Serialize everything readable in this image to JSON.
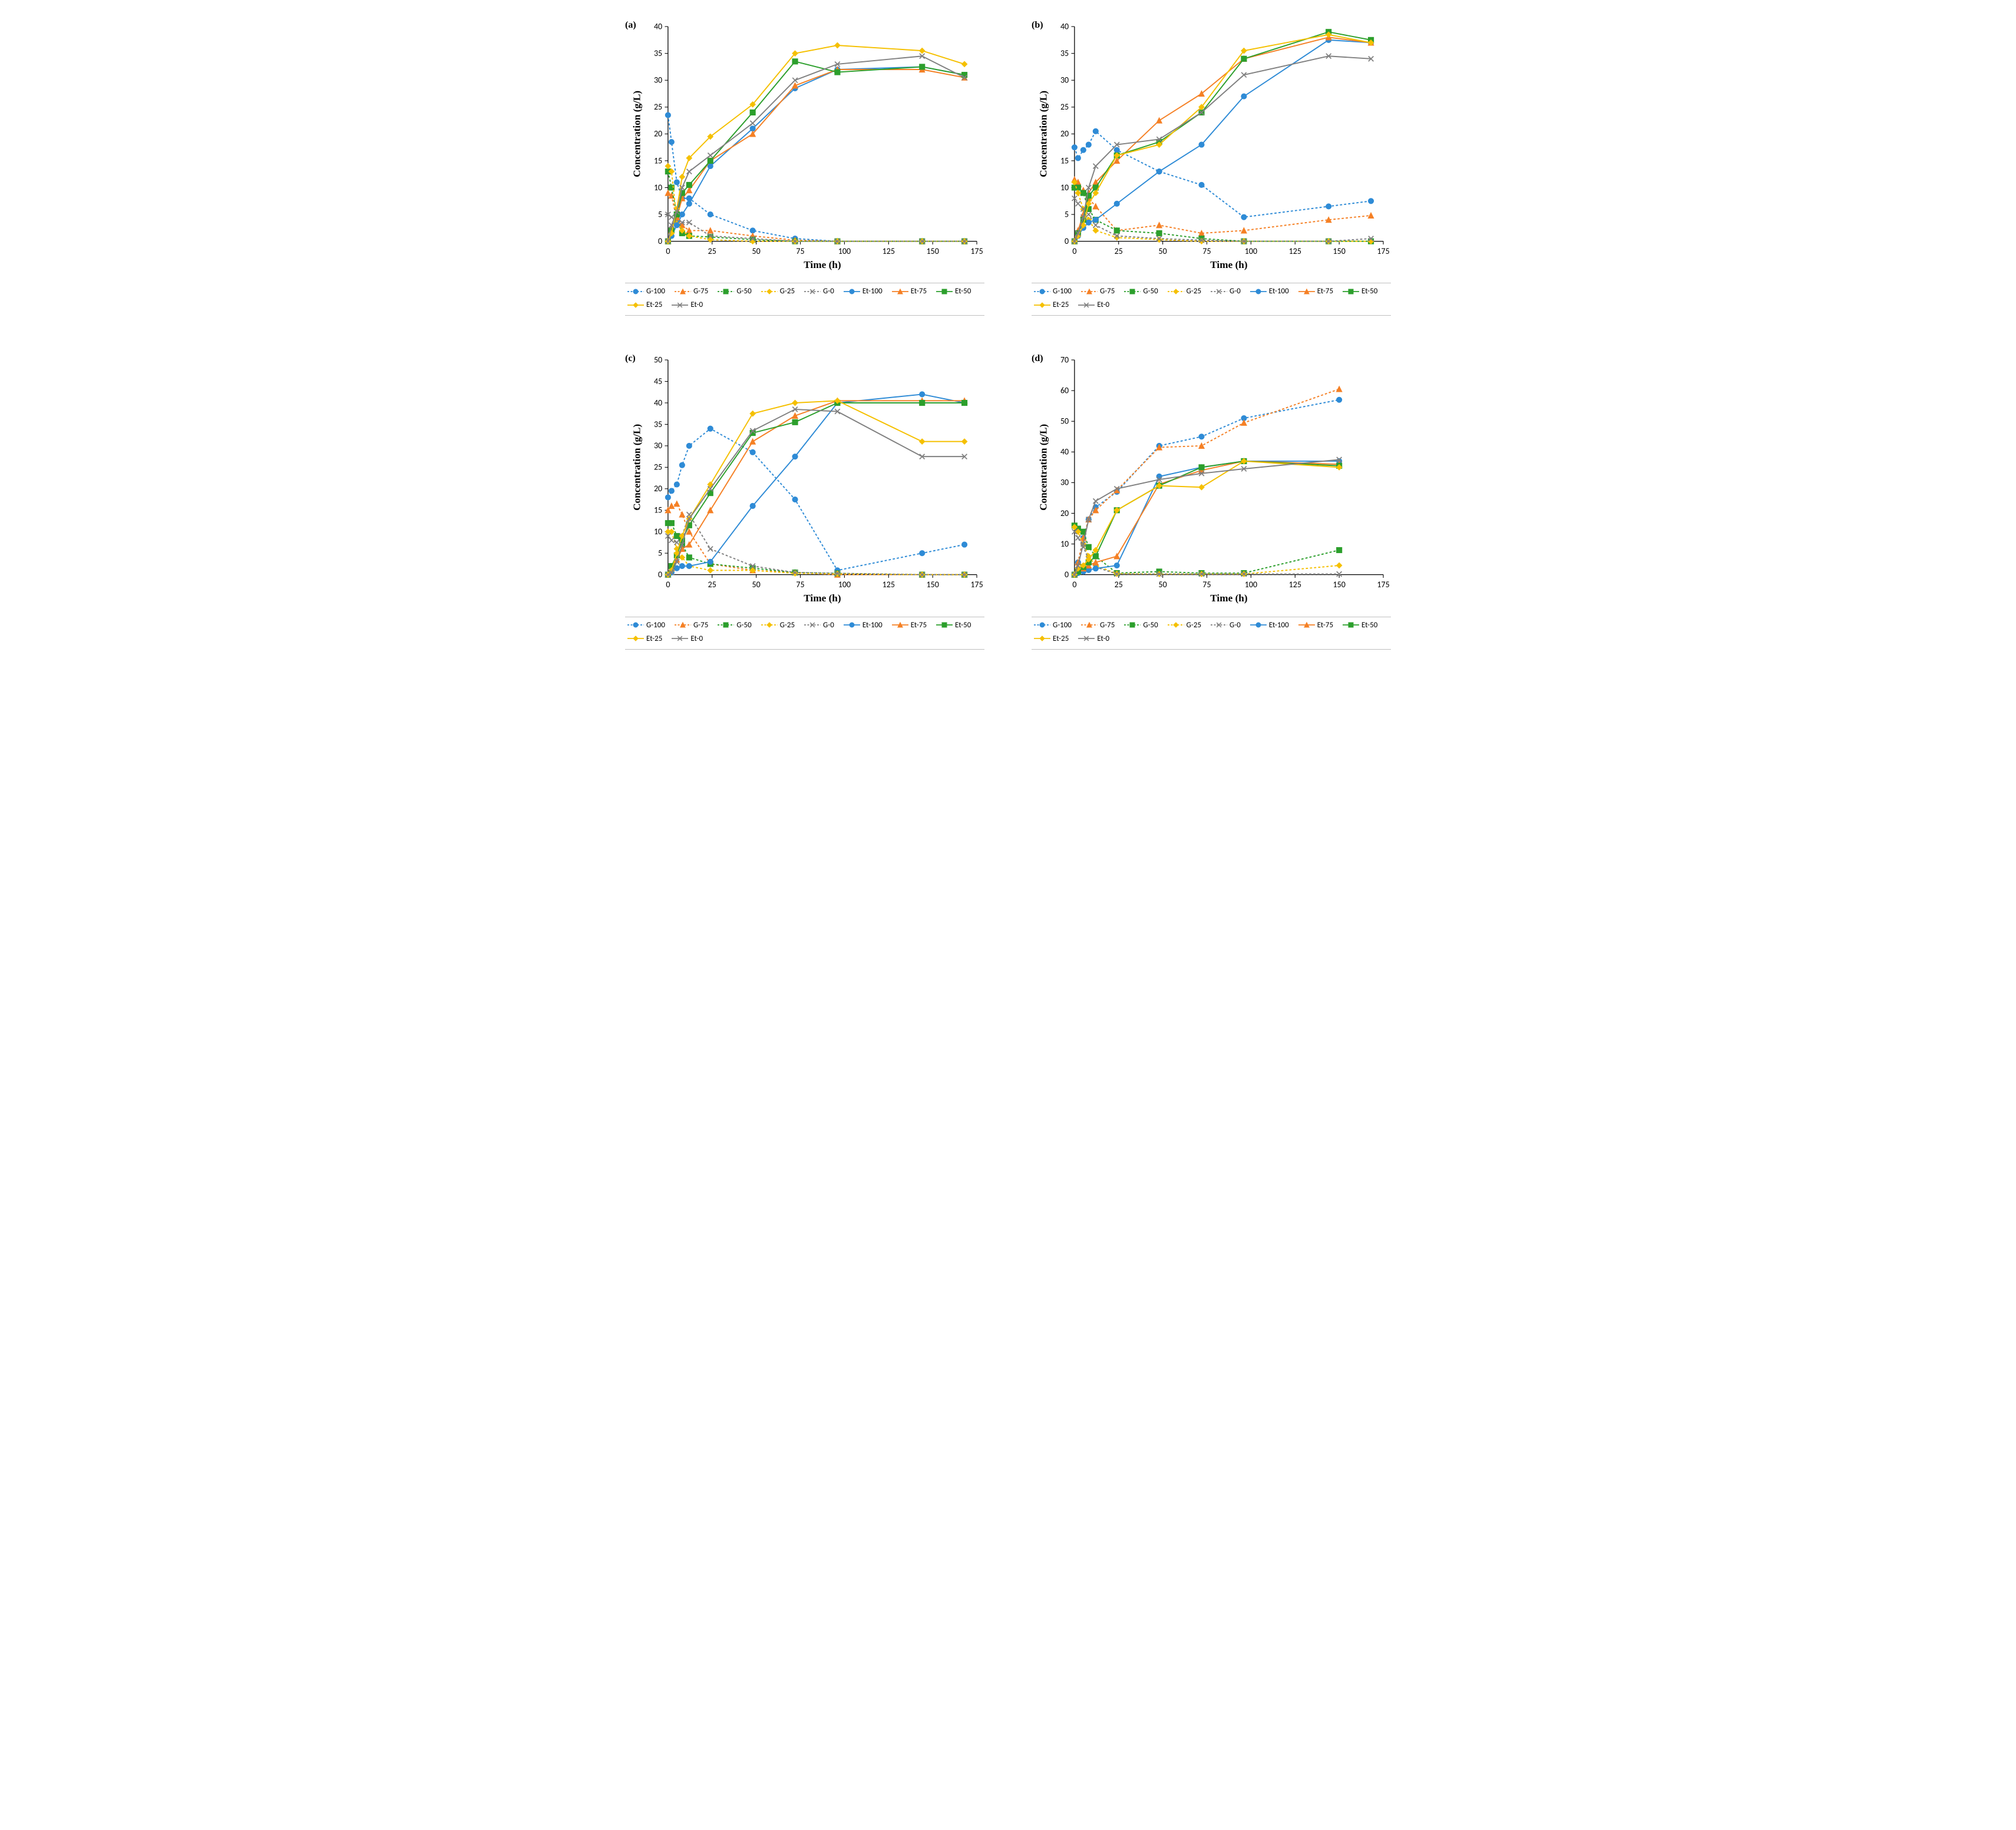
{
  "global": {
    "x_label": "Time (h)",
    "y_label": "Concentration (g/L)",
    "bg": "#ffffff",
    "axis_color": "#000000",
    "tick_fontsize": 13,
    "axis_fontsize": 16,
    "line_width": 1.8,
    "marker_size": 5
  },
  "colors": {
    "blue": "#2e8bd6",
    "orange": "#f58025",
    "green": "#2c9f2c",
    "yellow": "#f5c000",
    "gray": "#808080"
  },
  "series_styles": [
    {
      "id": "G-100",
      "label": "G-100",
      "color": "blue",
      "dashed": true,
      "marker": "circle"
    },
    {
      "id": "G-75",
      "label": "G-75",
      "color": "orange",
      "dashed": true,
      "marker": "triangle"
    },
    {
      "id": "G-50",
      "label": "G-50",
      "color": "green",
      "dashed": true,
      "marker": "square"
    },
    {
      "id": "G-25",
      "label": "G-25",
      "color": "yellow",
      "dashed": true,
      "marker": "diamond"
    },
    {
      "id": "G-0",
      "label": "G-0",
      "color": "gray",
      "dashed": true,
      "marker": "x"
    },
    {
      "id": "Et-100",
      "label": "Et-100",
      "color": "blue",
      "dashed": false,
      "marker": "circle"
    },
    {
      "id": "Et-75",
      "label": "Et-75",
      "color": "orange",
      "dashed": false,
      "marker": "triangle"
    },
    {
      "id": "Et-50",
      "label": "Et-50",
      "color": "green",
      "dashed": false,
      "marker": "square"
    },
    {
      "id": "Et-25",
      "label": "Et-25",
      "color": "yellow",
      "dashed": false,
      "marker": "diamond"
    },
    {
      "id": "Et-0",
      "label": "Et-0",
      "color": "gray",
      "dashed": false,
      "marker": "x"
    }
  ],
  "panels": {
    "a": {
      "label": "(a)",
      "xlim": [
        0,
        175
      ],
      "xtick_step": 25,
      "ylim": [
        0,
        40
      ],
      "ytick_step": 5,
      "x": [
        0,
        2,
        5,
        8,
        12,
        24,
        48,
        72,
        96,
        144,
        168
      ],
      "data": {
        "G-100": [
          23.5,
          18.5,
          11,
          8,
          8,
          5,
          2,
          0.5,
          0,
          0,
          0
        ],
        "G-75": [
          9,
          8.5,
          4,
          3,
          2,
          2,
          1,
          0.2,
          0,
          0,
          0
        ],
        "G-50": [
          13,
          10,
          5,
          1.5,
          1,
          0.8,
          0.3,
          0,
          0,
          0,
          0
        ],
        "G-25": [
          14,
          13,
          4,
          2,
          1,
          0.3,
          0,
          0,
          0,
          0,
          0
        ],
        "G-0": [
          5,
          4.5,
          4,
          3.5,
          3.5,
          1,
          0.5,
          0,
          0,
          0,
          0
        ],
        "Et-100": [
          0,
          1,
          3,
          5,
          7,
          14,
          21,
          28.5,
          32,
          32.5,
          31
        ],
        "Et-75": [
          0,
          2.5,
          4.5,
          8,
          9.5,
          15,
          20,
          29,
          32,
          32,
          30.5
        ],
        "Et-50": [
          0,
          2,
          5,
          9,
          10.5,
          15,
          24,
          33.5,
          31.5,
          32.5,
          31
        ],
        "Et-25": [
          0,
          1.5,
          6,
          12,
          15.5,
          19.5,
          25.5,
          35,
          36.5,
          35.5,
          33
        ],
        "Et-0": [
          0,
          3,
          5.5,
          10,
          13,
          16,
          22,
          30,
          33,
          34.5,
          30.5
        ]
      }
    },
    "b": {
      "label": "(b)",
      "xlim": [
        0,
        175
      ],
      "xtick_step": 25,
      "ylim": [
        0,
        40
      ],
      "ytick_step": 5,
      "x": [
        0,
        2,
        5,
        8,
        12,
        24,
        48,
        72,
        96,
        144,
        168
      ],
      "data": {
        "G-100": [
          17.5,
          15.5,
          17,
          18,
          20.5,
          17,
          13,
          10.5,
          4.5,
          6.5,
          7.5
        ],
        "G-75": [
          11.5,
          11,
          9.5,
          8,
          6.5,
          2,
          3,
          1.5,
          2,
          4,
          4.8
        ],
        "G-50": [
          10,
          10,
          9,
          6,
          4,
          2,
          1.5,
          0.5,
          0,
          0,
          0
        ],
        "G-25": [
          11,
          9,
          6,
          4,
          2,
          0.7,
          0.3,
          0,
          0,
          0,
          0
        ],
        "G-0": [
          8,
          7,
          6,
          5,
          3,
          1,
          0.5,
          0.2,
          0,
          0,
          0.5
        ],
        "Et-100": [
          0,
          1,
          2.5,
          3.5,
          4,
          7,
          13,
          18,
          27,
          37.5,
          37
        ],
        "Et-75": [
          0,
          2,
          5,
          9,
          11,
          15,
          22.5,
          27.5,
          34,
          38,
          37
        ],
        "Et-50": [
          0,
          1.5,
          4,
          8.5,
          10,
          16,
          18.5,
          24,
          34,
          39,
          37.5
        ],
        "Et-25": [
          0,
          1,
          3,
          7,
          9,
          16,
          18,
          25,
          35.5,
          38.5,
          37
        ],
        "Et-0": [
          0,
          1.5,
          4.5,
          10,
          14,
          18,
          19,
          24,
          31,
          34.5,
          34
        ]
      }
    },
    "c": {
      "label": "(c)",
      "xlim": [
        0,
        175
      ],
      "xtick_step": 25,
      "ylim": [
        0,
        50
      ],
      "ytick_step": 5,
      "x": [
        0,
        2,
        5,
        8,
        12,
        24,
        48,
        72,
        96,
        144,
        168
      ],
      "data": {
        "G-100": [
          18,
          19.5,
          21,
          25.5,
          30,
          34,
          28.5,
          17.5,
          1,
          5,
          7
        ],
        "G-75": [
          15,
          16,
          16.5,
          14,
          10,
          2.5,
          1,
          0.5,
          0,
          0,
          0
        ],
        "G-50": [
          12,
          12,
          9,
          7,
          4,
          2.5,
          1.5,
          0.5,
          0.3,
          0,
          0
        ],
        "G-25": [
          10,
          10,
          6,
          4,
          2,
          1,
          1,
          0.3,
          0.2,
          0,
          0
        ],
        "G-0": [
          9,
          8,
          7.5,
          9,
          14,
          6,
          2,
          0.5,
          0.3,
          0,
          0
        ],
        "Et-100": [
          0,
          0.5,
          1.5,
          2,
          2,
          3,
          16,
          27.5,
          40,
          42,
          40
        ],
        "Et-75": [
          0,
          1.5,
          3.5,
          6,
          7,
          15,
          31,
          37,
          40.5,
          40.5,
          40.5
        ],
        "Et-50": [
          0,
          2,
          4.5,
          8,
          11.5,
          19,
          33,
          35.5,
          40,
          40,
          40
        ],
        "Et-25": [
          0,
          1,
          5,
          9,
          13,
          21,
          37.5,
          40,
          40.5,
          31,
          31
        ],
        "Et-0": [
          0,
          0.5,
          3,
          7,
          13,
          20,
          33.5,
          38.5,
          38,
          27.5,
          27.5
        ]
      }
    },
    "d": {
      "label": "(d)",
      "xlim": [
        0,
        175
      ],
      "xtick_step": 25,
      "ylim": [
        0,
        70
      ],
      "ytick_step": 10,
      "x": [
        0,
        2,
        5,
        8,
        12,
        24,
        48,
        72,
        96,
        150
      ],
      "data": {
        "G-100": [
          0,
          4,
          12,
          18,
          22,
          27,
          42,
          45,
          51,
          57
        ],
        "G-75": [
          0,
          4,
          12,
          18,
          21,
          27.5,
          41.5,
          42,
          49.5,
          60.5
        ],
        "G-50": [
          16,
          15,
          14,
          9,
          6,
          0.5,
          1,
          0.5,
          0.5,
          8
        ],
        "G-25": [
          15.5,
          14,
          10,
          6,
          3,
          0.3,
          0.2,
          0.2,
          0.2,
          3
        ],
        "G-0": [
          14,
          12,
          9,
          5,
          2.5,
          0.2,
          0.2,
          0.2,
          0.2,
          0.2
        ],
        "Et-100": [
          0,
          0.5,
          1,
          1.5,
          2,
          3,
          32,
          35,
          37,
          37
        ],
        "Et-75": [
          0,
          1,
          2,
          3,
          4,
          6,
          29.5,
          34,
          37,
          36
        ],
        "Et-50": [
          0,
          1,
          2.5,
          4,
          6,
          21,
          29,
          35,
          37,
          35.5
        ],
        "Et-25": [
          0,
          2,
          3,
          5,
          8,
          21,
          29,
          28.5,
          37,
          35
        ],
        "Et-0": [
          0,
          3,
          10,
          18,
          24,
          28,
          31,
          33,
          34.5,
          37.5
        ]
      }
    }
  }
}
